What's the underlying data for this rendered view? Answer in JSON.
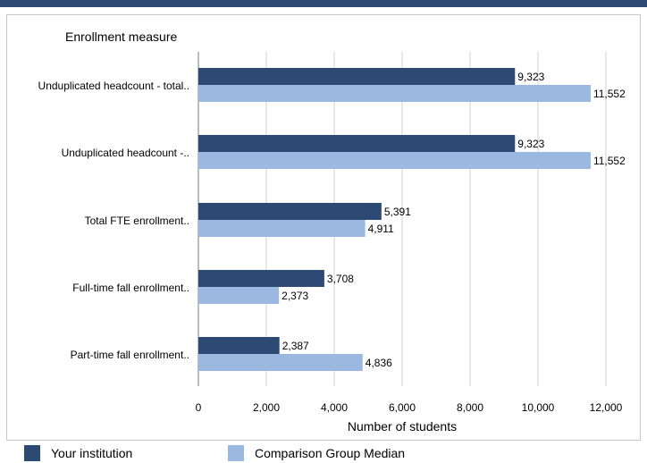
{
  "chart_data": {
    "type": "bar",
    "orientation": "horizontal",
    "title": "",
    "ylabel": "Enrollment measure",
    "xlabel": "Number of students",
    "categories": [
      "Unduplicated headcount - total..",
      "Unduplicated headcount -..",
      "Total FTE enrollment..",
      "Full-time fall enrollment..",
      "Part-time fall enrollment.."
    ],
    "series": [
      {
        "name": "Your institution",
        "color": "#2c4a73",
        "values": [
          9323,
          9323,
          5391,
          3708,
          2387
        ],
        "labels": [
          "9,323",
          "9,323",
          "5,391",
          "3,708",
          "2,387"
        ]
      },
      {
        "name": "Comparison Group Median",
        "color": "#9ab8e0",
        "values": [
          11552,
          11552,
          4911,
          2373,
          4836
        ],
        "labels": [
          "11,552",
          "11,552",
          "4,911",
          "2,373",
          "4,836"
        ]
      }
    ],
    "xlim": [
      0,
      12000
    ],
    "xticks": [
      0,
      2000,
      4000,
      6000,
      8000,
      10000,
      12000
    ],
    "xtick_labels": [
      "0",
      "2,000",
      "4,000",
      "6,000",
      "8,000",
      "10,000",
      "12,000"
    ],
    "grid": true,
    "legend_position": "bottom"
  }
}
